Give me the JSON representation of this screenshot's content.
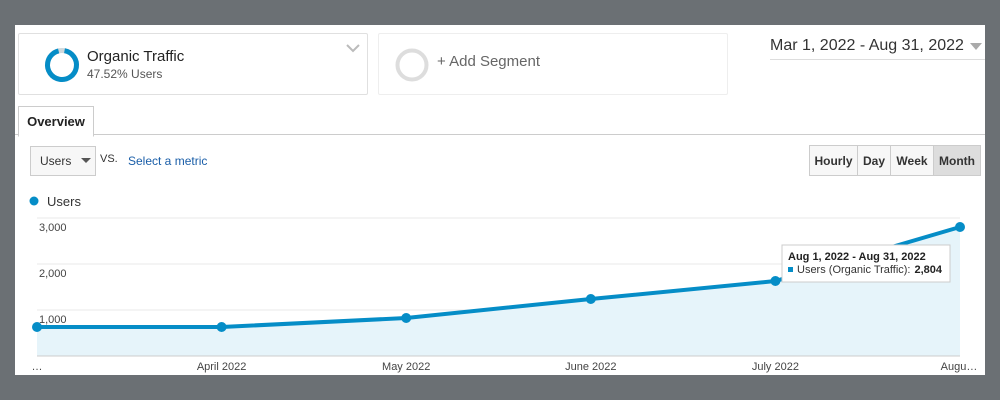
{
  "header": {
    "segment": {
      "name": "Organic Traffic",
      "detail": "47.52% Users"
    },
    "add_segment": "+ Add Segment",
    "date_range": "Mar 1, 2022 - Aug 31, 2022"
  },
  "tabs": [
    "Overview"
  ],
  "controls": {
    "metric": "Users",
    "vs": "VS.",
    "select_metric": "Select a metric",
    "granularity": [
      "Hourly",
      "Day",
      "Week",
      "Month"
    ]
  },
  "chart_data": {
    "type": "line",
    "categories": [
      "…",
      "April 2022",
      "May 2022",
      "June 2022",
      "July 2022",
      "Augu…"
    ],
    "series": [
      {
        "name": "Users",
        "color": "#058dc7",
        "values": [
          630,
          630,
          826,
          1239,
          1630,
          2804
        ],
        "value_labels": [
          null,
          null,
          null,
          null,
          null,
          "2,804"
        ]
      }
    ],
    "ylim": [
      0,
      3000
    ],
    "yticks": [
      {
        "value": 1000,
        "label": "1,000"
      },
      {
        "value": 2000,
        "label": "2,000"
      },
      {
        "value": 3000,
        "label": "3,000"
      }
    ],
    "grid": true,
    "tooltip": {
      "title": "Aug 1, 2022 - Aug 31, 2022",
      "label": "Users (Organic Traffic):"
    }
  }
}
